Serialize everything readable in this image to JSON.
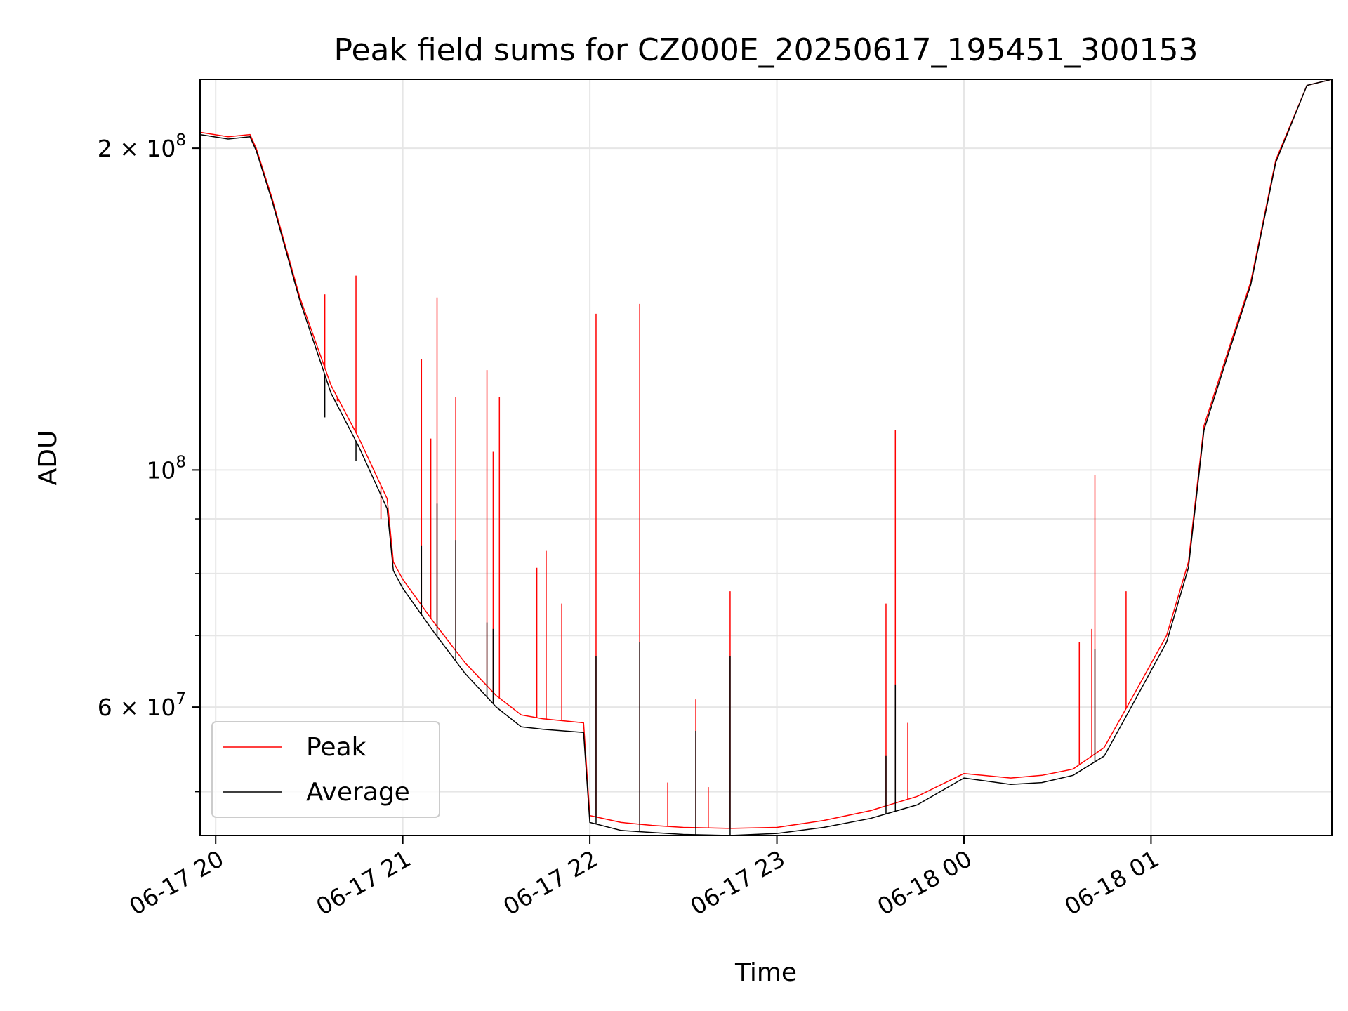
{
  "chart_data": {
    "type": "line",
    "title": "Peak field sums for CZ000E_20250617_195451_300153",
    "xlabel": "Time",
    "ylabel": "ADU",
    "x_unit": "datetime (hours, 2025-06-17/18)",
    "xlim": [
      "2025-06-17 19:55",
      "2025-06-18 01:58"
    ],
    "ylim": [
      45500000,
      232000000
    ],
    "yscale": "log",
    "grid": true,
    "legend_position": "lower-left",
    "x_ticks": [
      {
        "value": "2025-06-17 20:00",
        "label": "06-17 20"
      },
      {
        "value": "2025-06-17 21:00",
        "label": "06-17 21"
      },
      {
        "value": "2025-06-17 22:00",
        "label": "06-17 22"
      },
      {
        "value": "2025-06-17 23:00",
        "label": "06-17 23"
      },
      {
        "value": "2025-06-18 00:00",
        "label": "06-18 00"
      },
      {
        "value": "2025-06-18 01:00",
        "label": "06-18 01"
      }
    ],
    "y_ticks": [
      {
        "value": 200000000,
        "mantissa": "2",
        "exponent": "8"
      },
      {
        "value": 100000000,
        "mantissa": "",
        "exponent": "8"
      },
      {
        "value": 60000000,
        "mantissa": "6",
        "exponent": "7"
      }
    ],
    "y_minor_ticks": [
      50000000,
      70000000,
      80000000,
      90000000
    ],
    "series": [
      {
        "name": "Peak",
        "color": "#ff0000",
        "points": [
          [
            "2025-06-17 19:55",
            207000000
          ],
          [
            "2025-06-17 20:04",
            205000000
          ],
          [
            "2025-06-17 20:11",
            206000000
          ],
          [
            "2025-06-17 20:13",
            200000000
          ],
          [
            "2025-06-17 20:18",
            180000000
          ],
          [
            "2025-06-17 20:27",
            145000000
          ],
          [
            "2025-06-17 20:37",
            120000000
          ],
          [
            "2025-06-17 20:46",
            107000000
          ],
          [
            "2025-06-17 20:55",
            94000000
          ],
          [
            "2025-06-17 20:57",
            82000000
          ],
          [
            "2025-06-17 21:00",
            79000000
          ],
          [
            "2025-06-17 21:10",
            72000000
          ],
          [
            "2025-06-17 21:20",
            66000000
          ],
          [
            "2025-06-17 21:30",
            61500000
          ],
          [
            "2025-06-17 21:38",
            59000000
          ],
          [
            "2025-06-17 21:45",
            58500000
          ],
          [
            "2025-06-17 21:58",
            58000000
          ],
          [
            "2025-06-17 22:00",
            47500000
          ],
          [
            "2025-06-17 22:10",
            46800000
          ],
          [
            "2025-06-17 22:20",
            46500000
          ],
          [
            "2025-06-17 22:30",
            46300000
          ],
          [
            "2025-06-17 22:45",
            46200000
          ],
          [
            "2025-06-17 23:00",
            46300000
          ],
          [
            "2025-06-17 23:15",
            47000000
          ],
          [
            "2025-06-17 23:30",
            48000000
          ],
          [
            "2025-06-17 23:45",
            49500000
          ],
          [
            "2025-06-18 00:00",
            52000000
          ],
          [
            "2025-06-18 00:15",
            51500000
          ],
          [
            "2025-06-18 00:25",
            51800000
          ],
          [
            "2025-06-18 00:35",
            52500000
          ],
          [
            "2025-06-18 00:45",
            55000000
          ],
          [
            "2025-06-18 00:55",
            62000000
          ],
          [
            "2025-06-18 01:05",
            70000000
          ],
          [
            "2025-06-18 01:12",
            82000000
          ],
          [
            "2025-06-18 01:17",
            110000000
          ],
          [
            "2025-06-18 01:25",
            130000000
          ],
          [
            "2025-06-18 01:32",
            150000000
          ],
          [
            "2025-06-18 01:40",
            195000000
          ],
          [
            "2025-06-18 01:50",
            229000000
          ],
          [
            "2025-06-18 01:58",
            232000000
          ]
        ],
        "spikes": [
          [
            "2025-06-17 20:35",
            146000000
          ],
          [
            "2025-06-17 20:39",
            116000000
          ],
          [
            "2025-06-17 20:45",
            152000000
          ],
          [
            "2025-06-17 20:53",
            90000000
          ],
          [
            "2025-06-17 21:06",
            127000000
          ],
          [
            "2025-06-17 21:09",
            107000000
          ],
          [
            "2025-06-17 21:11",
            145000000
          ],
          [
            "2025-06-17 21:17",
            117000000
          ],
          [
            "2025-06-17 21:27",
            124000000
          ],
          [
            "2025-06-17 21:29",
            104000000
          ],
          [
            "2025-06-17 21:31",
            117000000
          ],
          [
            "2025-06-17 21:43",
            81000000
          ],
          [
            "2025-06-17 21:46",
            84000000
          ],
          [
            "2025-06-17 21:51",
            75000000
          ],
          [
            "2025-06-17 22:02",
            140000000
          ],
          [
            "2025-06-17 22:16",
            143000000
          ],
          [
            "2025-06-17 22:25",
            51000000
          ],
          [
            "2025-06-17 22:34",
            61000000
          ],
          [
            "2025-06-17 22:38",
            50500000
          ],
          [
            "2025-06-17 22:45",
            77000000
          ],
          [
            "2025-06-17 23:35",
            75000000
          ],
          [
            "2025-06-17 23:38",
            109000000
          ],
          [
            "2025-06-17 23:42",
            58000000
          ],
          [
            "2025-06-18 00:37",
            69000000
          ],
          [
            "2025-06-18 00:41",
            71000000
          ],
          [
            "2025-06-18 00:42",
            99000000
          ],
          [
            "2025-06-18 00:52",
            77000000
          ]
        ]
      },
      {
        "name": "Average",
        "color": "#000000",
        "points": [
          [
            "2025-06-17 19:55",
            206000000
          ],
          [
            "2025-06-17 20:04",
            204000000
          ],
          [
            "2025-06-17 20:11",
            205000000
          ],
          [
            "2025-06-17 20:13",
            199000000
          ],
          [
            "2025-06-17 20:18",
            179000000
          ],
          [
            "2025-06-17 20:27",
            144000000
          ],
          [
            "2025-06-17 20:37",
            118000000
          ],
          [
            "2025-06-17 20:46",
            105000000
          ],
          [
            "2025-06-17 20:55",
            92000000
          ],
          [
            "2025-06-17 20:57",
            80500000
          ],
          [
            "2025-06-17 21:00",
            77500000
          ],
          [
            "2025-06-17 21:10",
            70500000
          ],
          [
            "2025-06-17 21:20",
            64500000
          ],
          [
            "2025-06-17 21:30",
            60000000
          ],
          [
            "2025-06-17 21:38",
            57500000
          ],
          [
            "2025-06-17 21:45",
            57200000
          ],
          [
            "2025-06-17 21:58",
            56800000
          ],
          [
            "2025-06-17 22:00",
            46800000
          ],
          [
            "2025-06-17 22:10",
            46000000
          ],
          [
            "2025-06-17 22:20",
            45800000
          ],
          [
            "2025-06-17 22:30",
            45600000
          ],
          [
            "2025-06-17 22:45",
            45500000
          ],
          [
            "2025-06-17 23:00",
            45700000
          ],
          [
            "2025-06-17 23:15",
            46300000
          ],
          [
            "2025-06-17 23:30",
            47200000
          ],
          [
            "2025-06-17 23:45",
            48600000
          ],
          [
            "2025-06-18 00:00",
            51500000
          ],
          [
            "2025-06-18 00:15",
            50800000
          ],
          [
            "2025-06-18 00:25",
            51000000
          ],
          [
            "2025-06-18 00:35",
            51800000
          ],
          [
            "2025-06-18 00:45",
            54000000
          ],
          [
            "2025-06-18 00:55",
            61000000
          ],
          [
            "2025-06-18 01:05",
            69000000
          ],
          [
            "2025-06-18 01:12",
            81000000
          ],
          [
            "2025-06-18 01:17",
            109000000
          ],
          [
            "2025-06-18 01:25",
            129000000
          ],
          [
            "2025-06-18 01:32",
            149000000
          ],
          [
            "2025-06-18 01:40",
            194000000
          ],
          [
            "2025-06-18 01:50",
            229000000
          ],
          [
            "2025-06-18 01:58",
            232000000
          ]
        ],
        "spikes": [
          [
            "2025-06-17 20:35",
            112000000
          ],
          [
            "2025-06-17 20:45",
            102000000
          ],
          [
            "2025-06-17 21:06",
            85000000
          ],
          [
            "2025-06-17 21:11",
            93000000
          ],
          [
            "2025-06-17 21:17",
            86000000
          ],
          [
            "2025-06-17 21:27",
            72000000
          ],
          [
            "2025-06-17 21:29",
            71000000
          ],
          [
            "2025-06-17 22:02",
            67000000
          ],
          [
            "2025-06-17 22:16",
            69000000
          ],
          [
            "2025-06-17 22:34",
            57000000
          ],
          [
            "2025-06-17 22:45",
            67000000
          ],
          [
            "2025-06-17 23:35",
            54000000
          ],
          [
            "2025-06-17 23:38",
            63000000
          ],
          [
            "2025-06-18 00:42",
            68000000
          ]
        ]
      }
    ]
  }
}
